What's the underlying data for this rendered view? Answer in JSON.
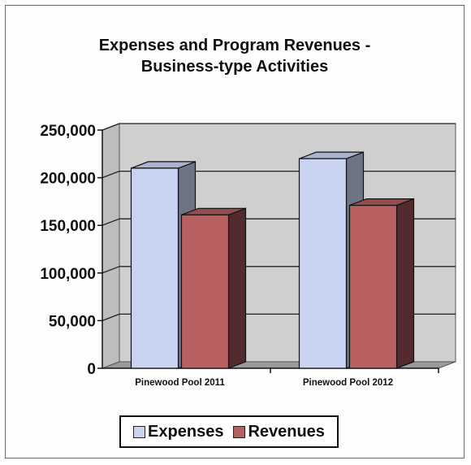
{
  "chart_data": {
    "type": "bar",
    "title": "Expenses and Program Revenues -",
    "subtitle": "Business-type Activities",
    "categories": [
      "Pinewood Pool 2011",
      "Pinewood Pool 2012"
    ],
    "series": [
      {
        "name": "Expenses",
        "values": [
          210000,
          220000
        ],
        "color": "#c9d3f2"
      },
      {
        "name": "Revenues",
        "values": [
          161000,
          171000
        ],
        "color": "#b86062"
      }
    ],
    "ylim": [
      0,
      250000
    ],
    "yticks": [
      "0",
      "50,000",
      "100,000",
      "150,000",
      "200,000",
      "250,000"
    ],
    "grid": true,
    "legend_position": "bottom",
    "style": "3d-bar"
  }
}
